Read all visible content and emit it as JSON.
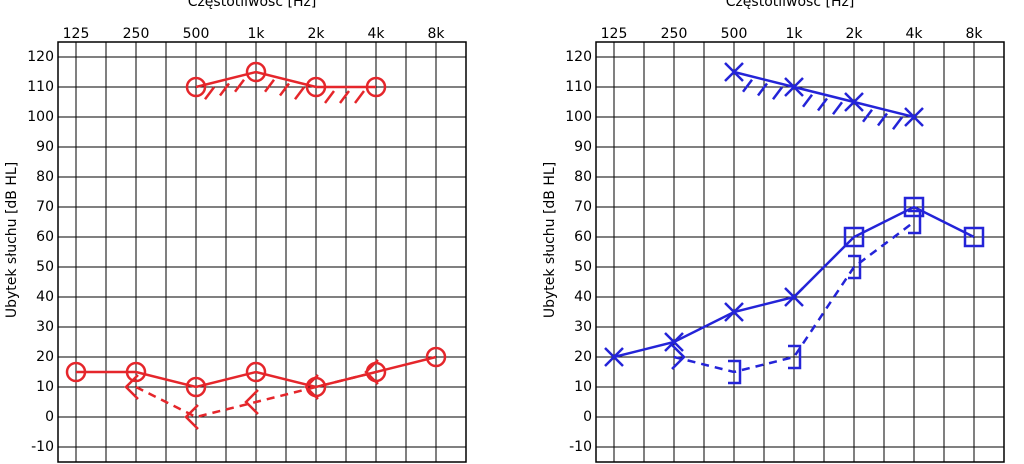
{
  "chart_data": [
    {
      "type": "line",
      "title": "Częstotliwość  [Hz]",
      "ylabel": "Ubytek słuchu  [dB HL]",
      "categories": [
        "125",
        "250",
        "500",
        "1k",
        "2k",
        "4k",
        "8k"
      ],
      "ylim": [
        -15,
        125
      ],
      "yticks": [
        -10,
        0,
        10,
        20,
        30,
        40,
        50,
        60,
        70,
        80,
        90,
        100,
        110,
        120
      ],
      "grid": true,
      "series": [
        {
          "color": "#e5262b",
          "dash": false,
          "hatch": false,
          "values": [
            15,
            15,
            10,
            15,
            10,
            15,
            20
          ],
          "markers": [
            "circle",
            "circle",
            "circle",
            "circle",
            "circle",
            "circle",
            "circle"
          ]
        },
        {
          "color": "#e5262b",
          "dash": true,
          "hatch": false,
          "values": [
            null,
            10,
            0,
            5,
            10,
            15,
            null
          ],
          "markers": [
            null,
            "lt",
            "lt",
            "lt",
            "lt",
            "lt",
            null
          ]
        },
        {
          "color": "#e5262b",
          "dash": false,
          "hatch": true,
          "values": [
            null,
            null,
            110,
            115,
            110,
            110,
            null
          ],
          "markers": [
            null,
            null,
            "circle",
            "circle",
            "circle",
            "circle",
            null
          ]
        }
      ]
    },
    {
      "type": "line",
      "title": "Częstotliwość  [Hz]",
      "ylabel": "Ubytek słuchu  [dB HL]",
      "categories": [
        "125",
        "250",
        "500",
        "1k",
        "2k",
        "4k",
        "8k"
      ],
      "ylim": [
        -15,
        125
      ],
      "yticks": [
        -10,
        0,
        10,
        20,
        30,
        40,
        50,
        60,
        70,
        80,
        90,
        100,
        110,
        120
      ],
      "grid": true,
      "series": [
        {
          "color": "#2424d8",
          "dash": false,
          "hatch": false,
          "values": [
            20,
            25,
            35,
            40,
            60,
            70,
            60
          ],
          "markers": [
            "x",
            "x",
            "x",
            "x",
            "square",
            "square",
            "square"
          ]
        },
        {
          "color": "#2424d8",
          "dash": true,
          "hatch": false,
          "values": [
            null,
            20,
            15,
            20,
            50,
            65,
            null
          ],
          "markers": [
            null,
            "gt",
            "bracket",
            "bracket",
            "bracket",
            "bracket",
            null
          ]
        },
        {
          "color": "#2424d8",
          "dash": false,
          "hatch": true,
          "values": [
            null,
            null,
            115,
            110,
            105,
            100,
            null
          ],
          "markers": [
            null,
            null,
            "x",
            "x",
            "x",
            "x",
            null
          ]
        }
      ]
    }
  ]
}
